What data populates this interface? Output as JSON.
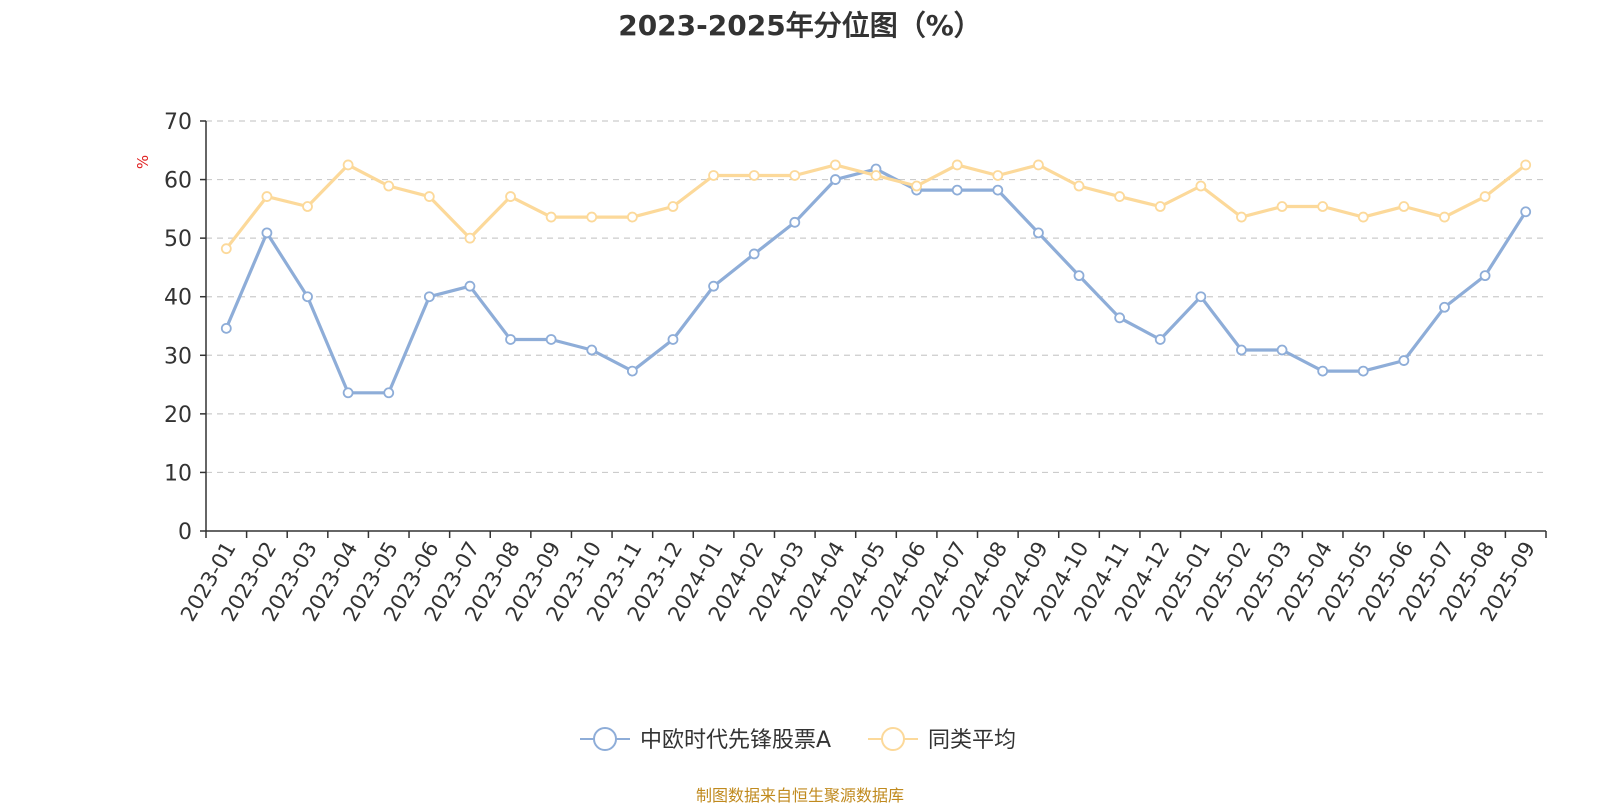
{
  "chart_data": {
    "type": "line",
    "title": "2023-2025年分位图（%）",
    "ylabel": "%",
    "ylim": [
      0,
      70
    ],
    "yticks": [
      0,
      10,
      20,
      30,
      40,
      50,
      60,
      70
    ],
    "grid": true,
    "legend_position": "bottom",
    "categories": [
      "2023-01",
      "2023-02",
      "2023-03",
      "2023-04",
      "2023-05",
      "2023-06",
      "2023-07",
      "2023-08",
      "2023-09",
      "2023-10",
      "2023-11",
      "2023-12",
      "2024-01",
      "2024-02",
      "2024-03",
      "2024-04",
      "2024-05",
      "2024-06",
      "2024-07",
      "2024-08",
      "2024-09",
      "2024-10",
      "2024-11",
      "2024-12",
      "2025-01",
      "2025-02",
      "2025-03",
      "2025-04",
      "2025-05",
      "2025-06",
      "2025-07",
      "2025-08",
      "2025-09"
    ],
    "series": [
      {
        "name": "中欧时代先锋股票A",
        "color": "#8eadd8",
        "values": [
          34.6,
          50.9,
          40.0,
          23.6,
          23.6,
          40.0,
          41.8,
          32.7,
          32.7,
          30.9,
          27.3,
          32.7,
          41.8,
          47.3,
          52.7,
          60.0,
          61.8,
          58.2,
          58.2,
          58.2,
          50.9,
          43.6,
          36.4,
          32.7,
          40.0,
          30.9,
          30.9,
          27.3,
          27.3,
          29.1,
          38.2,
          43.6,
          54.5
        ]
      },
      {
        "name": "同类平均",
        "color": "#fcd99a",
        "values": [
          48.2,
          57.1,
          55.4,
          62.5,
          58.9,
          57.1,
          50.0,
          57.1,
          53.6,
          53.6,
          53.6,
          55.4,
          60.7,
          60.7,
          60.7,
          62.5,
          60.7,
          58.9,
          62.5,
          60.7,
          62.5,
          58.9,
          57.1,
          55.4,
          58.9,
          53.6,
          55.4,
          55.4,
          53.6,
          55.4,
          53.6,
          57.1,
          62.5
        ]
      }
    ]
  },
  "footer": {
    "text": "制图数据来自恒生聚源数据库",
    "color": "#c08a1e"
  },
  "colors": {
    "ylabel": "#e02020",
    "axis": "#333333",
    "grid": "#cccccc"
  }
}
